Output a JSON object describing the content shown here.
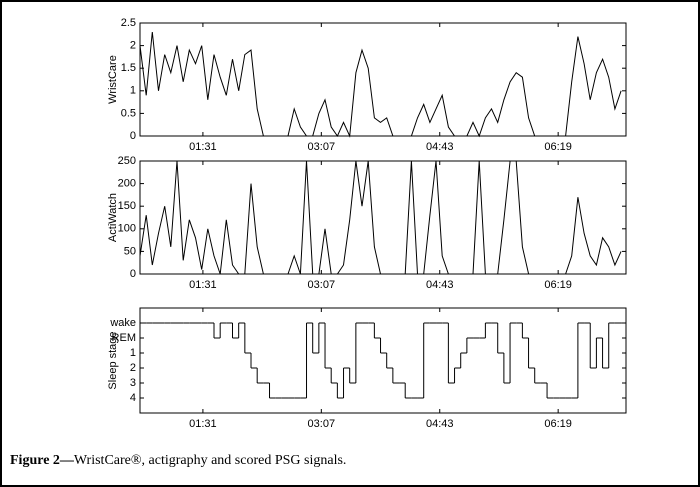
{
  "chart_data": [
    {
      "type": "line",
      "ylabel": "WristCare",
      "color": "#000000",
      "x": [
        40,
        45,
        50,
        55,
        60,
        65,
        70,
        75,
        80,
        85,
        90,
        95,
        100,
        105,
        110,
        115,
        120,
        125,
        130,
        135,
        140,
        145,
        150,
        155,
        160,
        165,
        170,
        175,
        180,
        185,
        190,
        195,
        200,
        205,
        210,
        215,
        220,
        225,
        230,
        235,
        240,
        245,
        250,
        255,
        260,
        265,
        270,
        275,
        280,
        285,
        290,
        295,
        300,
        305,
        310,
        315,
        320,
        325,
        330,
        335,
        340,
        345,
        350,
        355,
        360,
        365,
        370,
        375,
        380,
        385,
        390,
        395,
        400,
        405,
        410,
        415,
        420,
        425,
        430
      ],
      "values": [
        2.0,
        0.9,
        2.3,
        1.0,
        1.8,
        1.4,
        2.0,
        1.2,
        1.9,
        1.6,
        2.0,
        0.8,
        1.8,
        1.3,
        0.9,
        1.7,
        1.0,
        1.8,
        1.9,
        0.6,
        0,
        0,
        0,
        0,
        0,
        0.6,
        0.2,
        0,
        0,
        0.5,
        0.8,
        0.2,
        0,
        0.3,
        0,
        1.4,
        1.9,
        1.5,
        0.4,
        0.3,
        0.4,
        0,
        0,
        0,
        0,
        0.4,
        0.7,
        0.3,
        0.6,
        0.9,
        0.2,
        0,
        0,
        0,
        0.3,
        0,
        0.4,
        0.6,
        0.3,
        0.8,
        1.2,
        1.4,
        1.3,
        0.4,
        0,
        0,
        0,
        0,
        0,
        0,
        1.2,
        2.2,
        1.6,
        0.8,
        1.4,
        1.7,
        1.3,
        0.6,
        1.0
      ],
      "xlim": [
        40,
        434
      ],
      "xticks": [
        {
          "value": 91,
          "label": "01:31"
        },
        {
          "value": 187,
          "label": "03:07"
        },
        {
          "value": 283,
          "label": "04:43"
        },
        {
          "value": 379,
          "label": "06:19"
        }
      ],
      "ylim": [
        0,
        2.5
      ],
      "yticks": [
        0,
        0.5,
        1,
        1.5,
        2,
        2.5
      ]
    },
    {
      "type": "line",
      "ylabel": "ActiWatch",
      "color": "#000000",
      "x": [
        40,
        45,
        50,
        55,
        60,
        65,
        70,
        75,
        80,
        85,
        90,
        95,
        100,
        105,
        110,
        115,
        120,
        125,
        130,
        135,
        140,
        145,
        150,
        155,
        160,
        165,
        170,
        175,
        180,
        185,
        190,
        195,
        200,
        205,
        210,
        215,
        220,
        225,
        230,
        235,
        240,
        245,
        250,
        255,
        260,
        265,
        270,
        275,
        280,
        285,
        290,
        295,
        300,
        305,
        310,
        315,
        320,
        325,
        330,
        335,
        340,
        345,
        350,
        355,
        360,
        365,
        370,
        375,
        380,
        385,
        390,
        395,
        400,
        405,
        410,
        415,
        420,
        425,
        430
      ],
      "values": [
        40,
        130,
        20,
        90,
        150,
        60,
        250,
        30,
        120,
        80,
        10,
        100,
        40,
        0,
        120,
        20,
        0,
        0,
        200,
        60,
        0,
        0,
        0,
        0,
        0,
        40,
        0,
        250,
        0,
        0,
        100,
        0,
        0,
        20,
        120,
        250,
        150,
        250,
        60,
        0,
        0,
        0,
        0,
        0,
        250,
        0,
        0,
        130,
        250,
        40,
        0,
        0,
        0,
        0,
        0,
        250,
        0,
        0,
        0,
        120,
        250,
        250,
        60,
        0,
        0,
        0,
        0,
        0,
        0,
        0,
        40,
        170,
        90,
        40,
        20,
        80,
        60,
        20,
        50
      ],
      "xlim": [
        40,
        434
      ],
      "xticks": [
        {
          "value": 91,
          "label": "01:31"
        },
        {
          "value": 187,
          "label": "03:07"
        },
        {
          "value": 283,
          "label": "04:43"
        },
        {
          "value": 379,
          "label": "06:19"
        }
      ],
      "ylim": [
        0,
        250
      ],
      "yticks": [
        0,
        50,
        100,
        150,
        200,
        250
      ]
    },
    {
      "type": "step",
      "ylabel": "Sleep stage",
      "color": "#000000",
      "x": [
        40,
        45,
        50,
        55,
        60,
        65,
        70,
        75,
        80,
        85,
        90,
        95,
        100,
        105,
        110,
        115,
        120,
        125,
        130,
        135,
        140,
        145,
        150,
        155,
        160,
        165,
        170,
        175,
        180,
        185,
        190,
        195,
        200,
        205,
        210,
        215,
        220,
        225,
        230,
        235,
        240,
        245,
        250,
        255,
        260,
        265,
        270,
        275,
        280,
        285,
        290,
        295,
        300,
        305,
        310,
        315,
        320,
        325,
        330,
        335,
        340,
        345,
        350,
        355,
        360,
        365,
        370,
        375,
        380,
        385,
        390,
        395,
        400,
        405,
        410,
        415,
        420,
        425,
        430
      ],
      "values": [
        -1,
        -1,
        -1,
        -1,
        -1,
        -1,
        -1,
        -1,
        -1,
        -1,
        -1,
        -1,
        0,
        -1,
        -1,
        0,
        -1,
        1,
        2,
        3,
        3,
        4,
        4,
        4,
        4,
        4,
        4,
        -1,
        1,
        -1,
        2,
        3,
        4,
        2,
        3,
        -1,
        -1,
        -1,
        0,
        1,
        2,
        3,
        3,
        4,
        4,
        4,
        -1,
        -1,
        -1,
        -1,
        3,
        2,
        1,
        0,
        0,
        0,
        -1,
        -1,
        1,
        3,
        -1,
        -1,
        0,
        2,
        3,
        3,
        4,
        4,
        4,
        4,
        4,
        -1,
        -1,
        2,
        0,
        2,
        -1,
        -1,
        -1
      ],
      "xlim": [
        40,
        434
      ],
      "xticks": [
        {
          "value": 91,
          "label": "01:31"
        },
        {
          "value": 187,
          "label": "03:07"
        },
        {
          "value": 283,
          "label": "04:43"
        },
        {
          "value": 379,
          "label": "06:19"
        }
      ],
      "ylim": [
        5,
        -2
      ],
      "yticks": [
        {
          "value": -1,
          "label": "wake"
        },
        {
          "value": 0,
          "label": "REM"
        },
        1,
        2,
        3,
        4
      ]
    }
  ],
  "caption": {
    "label": "Figure 2—",
    "text": "WristCare®, actigraphy and scored PSG signals."
  }
}
